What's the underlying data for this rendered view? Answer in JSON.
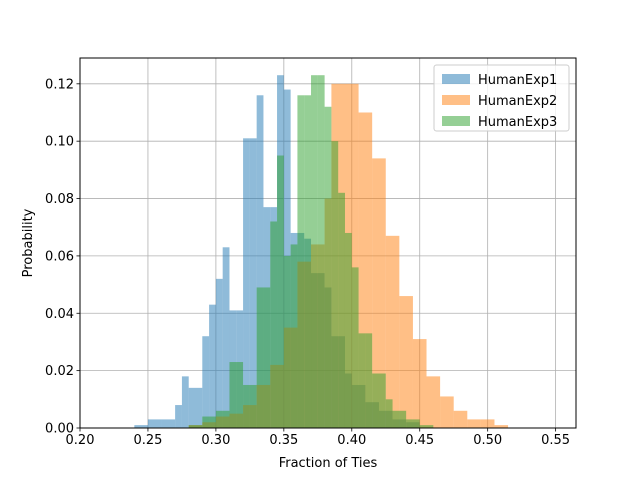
{
  "chart_data": {
    "type": "bar",
    "chart_kind": "histogram",
    "title": "",
    "xlabel": "Fraction of Ties",
    "ylabel": "Probability",
    "xlim": [
      0.2,
      0.565
    ],
    "ylim": [
      0.0,
      0.129
    ],
    "xticks": [
      "0.20",
      "0.25",
      "0.30",
      "0.35",
      "0.40",
      "0.45",
      "0.50",
      "0.55"
    ],
    "yticks": [
      "0.00",
      "0.02",
      "0.04",
      "0.06",
      "0.08",
      "0.10",
      "0.12"
    ],
    "grid": true,
    "legend_position": "top-right",
    "bar_opacity": 0.5,
    "series": [
      {
        "name": "HumanExp1",
        "color": "#1f77b4",
        "bins": [
          [
            0.24,
            0.25,
            0.001
          ],
          [
            0.25,
            0.26,
            0.003
          ],
          [
            0.26,
            0.27,
            0.003
          ],
          [
            0.27,
            0.275,
            0.008
          ],
          [
            0.275,
            0.28,
            0.018
          ],
          [
            0.28,
            0.29,
            0.014
          ],
          [
            0.29,
            0.295,
            0.032
          ],
          [
            0.295,
            0.3,
            0.043
          ],
          [
            0.3,
            0.305,
            0.052
          ],
          [
            0.305,
            0.31,
            0.063
          ],
          [
            0.31,
            0.315,
            0.041
          ],
          [
            0.315,
            0.32,
            0.041
          ],
          [
            0.32,
            0.325,
            0.101
          ],
          [
            0.325,
            0.33,
            0.101
          ],
          [
            0.33,
            0.335,
            0.116
          ],
          [
            0.335,
            0.34,
            0.077
          ],
          [
            0.34,
            0.345,
            0.077
          ],
          [
            0.345,
            0.35,
            0.123
          ],
          [
            0.35,
            0.355,
            0.118
          ],
          [
            0.355,
            0.36,
            0.068
          ],
          [
            0.36,
            0.365,
            0.068
          ],
          [
            0.365,
            0.37,
            0.066
          ],
          [
            0.37,
            0.375,
            0.054
          ],
          [
            0.375,
            0.38,
            0.054
          ],
          [
            0.38,
            0.385,
            0.049
          ],
          [
            0.385,
            0.39,
            0.032
          ],
          [
            0.39,
            0.395,
            0.032
          ],
          [
            0.395,
            0.4,
            0.019
          ],
          [
            0.4,
            0.41,
            0.015
          ],
          [
            0.41,
            0.42,
            0.009
          ],
          [
            0.42,
            0.43,
            0.006
          ],
          [
            0.43,
            0.44,
            0.003
          ],
          [
            0.44,
            0.45,
            0.002
          ]
        ]
      },
      {
        "name": "HumanExp2",
        "color": "#ff7f0e",
        "bins": [
          [
            0.28,
            0.29,
            0.001
          ],
          [
            0.29,
            0.3,
            0.002
          ],
          [
            0.3,
            0.31,
            0.004
          ],
          [
            0.31,
            0.32,
            0.005
          ],
          [
            0.32,
            0.33,
            0.008
          ],
          [
            0.33,
            0.34,
            0.015
          ],
          [
            0.34,
            0.35,
            0.022
          ],
          [
            0.35,
            0.36,
            0.035
          ],
          [
            0.36,
            0.37,
            0.058
          ],
          [
            0.37,
            0.38,
            0.064
          ],
          [
            0.38,
            0.385,
            0.08
          ],
          [
            0.385,
            0.395,
            0.12
          ],
          [
            0.395,
            0.405,
            0.12
          ],
          [
            0.405,
            0.415,
            0.11
          ],
          [
            0.415,
            0.425,
            0.094
          ],
          [
            0.425,
            0.435,
            0.067
          ],
          [
            0.435,
            0.445,
            0.046
          ],
          [
            0.445,
            0.455,
            0.031
          ],
          [
            0.455,
            0.465,
            0.018
          ],
          [
            0.465,
            0.475,
            0.011
          ],
          [
            0.475,
            0.485,
            0.006
          ],
          [
            0.485,
            0.495,
            0.003
          ],
          [
            0.495,
            0.505,
            0.003
          ],
          [
            0.505,
            0.515,
            0.001
          ]
        ]
      },
      {
        "name": "HumanExp3",
        "color": "#2ca02c",
        "bins": [
          [
            0.28,
            0.29,
            0.001
          ],
          [
            0.29,
            0.3,
            0.004
          ],
          [
            0.3,
            0.31,
            0.006
          ],
          [
            0.31,
            0.32,
            0.023
          ],
          [
            0.32,
            0.33,
            0.015
          ],
          [
            0.33,
            0.34,
            0.049
          ],
          [
            0.34,
            0.345,
            0.072
          ],
          [
            0.345,
            0.35,
            0.095
          ],
          [
            0.35,
            0.355,
            0.06
          ],
          [
            0.355,
            0.36,
            0.064
          ],
          [
            0.36,
            0.365,
            0.116
          ],
          [
            0.365,
            0.37,
            0.116
          ],
          [
            0.37,
            0.375,
            0.123
          ],
          [
            0.375,
            0.38,
            0.123
          ],
          [
            0.38,
            0.385,
            0.112
          ],
          [
            0.385,
            0.39,
            0.1
          ],
          [
            0.39,
            0.395,
            0.082
          ],
          [
            0.395,
            0.4,
            0.068
          ],
          [
            0.4,
            0.405,
            0.056
          ],
          [
            0.405,
            0.41,
            0.033
          ],
          [
            0.41,
            0.415,
            0.033
          ],
          [
            0.415,
            0.42,
            0.019
          ],
          [
            0.42,
            0.425,
            0.019
          ],
          [
            0.425,
            0.43,
            0.01
          ],
          [
            0.43,
            0.44,
            0.006
          ],
          [
            0.44,
            0.45,
            0.003
          ],
          [
            0.45,
            0.46,
            0.001
          ]
        ]
      }
    ]
  }
}
